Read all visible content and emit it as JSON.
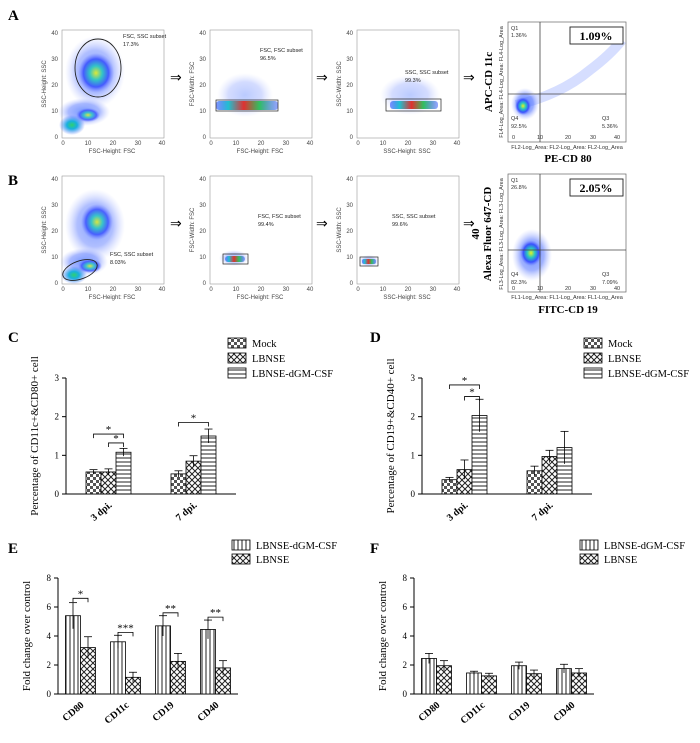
{
  "panels": {
    "A": "A",
    "B": "B",
    "C": "C",
    "D": "D",
    "E": "E",
    "F": "F"
  },
  "flow": {
    "row_A": {
      "plots": [
        {
          "xlabel": "FSC-Height: FSC",
          "ylabel": "SSC-Height: SSC",
          "gate": "FSC, SSC subset",
          "pct": "17.3%",
          "xticks": [
            "0",
            "10",
            "20",
            "30",
            "40"
          ],
          "yticks": [
            "0",
            "10",
            "20",
            "30",
            "40"
          ]
        },
        {
          "xlabel": "FSC-Height: FSC",
          "ylabel": "FSC-Width: FSC",
          "gate": "FSC, FSC subset",
          "pct": "96.5%",
          "xticks": [
            "0",
            "10",
            "20",
            "30",
            "40"
          ],
          "yticks": [
            "0",
            "10",
            "20",
            "30",
            "40"
          ]
        },
        {
          "xlabel": "SSC-Height: SSC",
          "ylabel": "SSC-Width: SSC",
          "gate": "SSC, SSC subset",
          "pct": "99.3%",
          "xticks": [
            "0",
            "10",
            "20",
            "30",
            "40"
          ],
          "yticks": [
            "0",
            "10",
            "20",
            "30",
            "40"
          ]
        }
      ],
      "quad": {
        "xlabel_small": "FL2-Log_Area: FL2-Log_Area: FL2-Log_Area",
        "ylabel_small": "FL4-Log_Area: FL4-Log_Area: FL4-Log_Area",
        "q1": "Q1",
        "q1v": "1.36%",
        "q4": "Q4",
        "q4v": "92.5%",
        "q3": "Q3",
        "q3v": "5.36%",
        "box": "1.09%",
        "xlabel": "PE-CD 80",
        "ylabel": "APC-CD 11c",
        "ticks": [
          "0",
          "10",
          "20",
          "30",
          "40"
        ]
      }
    },
    "row_B": {
      "plots": [
        {
          "xlabel": "FSC-Height: FSC",
          "ylabel": "SSC-Height: SSC",
          "gate": "FSC, SSC subset",
          "pct": "8.03%",
          "xticks": [
            "0",
            "10",
            "20",
            "30",
            "40"
          ],
          "yticks": [
            "0",
            "10",
            "20",
            "30",
            "40"
          ]
        },
        {
          "xlabel": "FSC-Height: FSC",
          "ylabel": "FSC-Width: FSC",
          "gate": "FSC, FSC subset",
          "pct": "99.4%",
          "xticks": [
            "0",
            "10",
            "20",
            "30",
            "40"
          ],
          "yticks": [
            "0",
            "10",
            "20",
            "30",
            "40"
          ]
        },
        {
          "xlabel": "SSC-Height: SSC",
          "ylabel": "SSC-Width: SSC",
          "gate": "SSC, SSC subset",
          "pct": "99.6%",
          "xticks": [
            "0",
            "10",
            "20",
            "30",
            "40"
          ],
          "yticks": [
            "0",
            "10",
            "20",
            "30",
            "40"
          ]
        }
      ],
      "quad": {
        "xlabel_small": "FL1-Log_Area: FL1-Log_Area: FL1-Log_Area",
        "ylabel_small": "FL3-Log_Area: FL3-Log_Area: FL3-Log_Area",
        "q1": "Q1",
        "q1v": "26.8%",
        "q4": "Q4",
        "q4v": "82.3%",
        "q3": "Q3",
        "q3v": "7.09%",
        "box": "2.05%",
        "xlabel": "FITC-CD 19",
        "ylabel": "Alexa Fluor 647-CD",
        "ylabel2": "40",
        "ticks": [
          "0",
          "10",
          "20",
          "30",
          "40"
        ]
      }
    }
  },
  "chart_data": [
    {
      "id": "C",
      "type": "bar",
      "ylabel": "Percentage of CD11c+&CD80+ cell",
      "ylim": [
        0,
        3
      ],
      "yticks": [
        "0",
        "1",
        "2",
        "3"
      ],
      "categories": [
        "3 dpi.",
        "7 dpi."
      ],
      "series": [
        {
          "name": "Mock",
          "pattern": "checker",
          "values": [
            0.57,
            0.52
          ],
          "errors": [
            0.06,
            0.08
          ]
        },
        {
          "name": "LBNSE",
          "pattern": "cross",
          "values": [
            0.57,
            0.85
          ],
          "errors": [
            0.08,
            0.14
          ]
        },
        {
          "name": "LBNSE-dGM-CSF",
          "pattern": "hstripe",
          "values": [
            1.08,
            1.5
          ],
          "errors": [
            0.1,
            0.18
          ]
        }
      ],
      "significance": [
        {
          "from": [
            0,
            0
          ],
          "to": [
            0,
            2
          ],
          "label": "*",
          "level": 1.55
        },
        {
          "from": [
            0,
            1
          ],
          "to": [
            0,
            2
          ],
          "label": "*",
          "level": 1.32
        },
        {
          "from": [
            1,
            0
          ],
          "to": [
            1,
            2
          ],
          "label": "*",
          "level": 1.85
        }
      ]
    },
    {
      "id": "D",
      "type": "bar",
      "ylabel": "Percentage of CD19+&CD40+ cell",
      "ylim": [
        0,
        3
      ],
      "yticks": [
        "0",
        "1",
        "2",
        "3"
      ],
      "categories": [
        "3 dpi.",
        "7 dpi."
      ],
      "series": [
        {
          "name": "Mock",
          "pattern": "checker",
          "values": [
            0.37,
            0.6
          ],
          "errors": [
            0.06,
            0.12
          ]
        },
        {
          "name": "LBNSE",
          "pattern": "cross",
          "values": [
            0.63,
            0.97
          ],
          "errors": [
            0.25,
            0.16
          ]
        },
        {
          "name": "LBNSE-dGM-CSF",
          "pattern": "hstripe",
          "values": [
            2.03,
            1.2
          ],
          "errors": [
            0.42,
            0.42
          ]
        }
      ],
      "significance": [
        {
          "from": [
            0,
            0
          ],
          "to": [
            0,
            2
          ],
          "label": "*",
          "level": 2.82
        },
        {
          "from": [
            0,
            1
          ],
          "to": [
            0,
            2
          ],
          "label": "*",
          "level": 2.52
        }
      ]
    },
    {
      "id": "E",
      "type": "bar",
      "ylabel": "Fold change over control",
      "ylim": [
        0,
        8
      ],
      "yticks": [
        "0",
        "2",
        "4",
        "6",
        "8"
      ],
      "categories": [
        "CD80",
        "CD11c",
        "CD19",
        "CD40"
      ],
      "series": [
        {
          "name": "LBNSE-dGM-CSF",
          "pattern": "vstripe",
          "values": [
            5.4,
            3.6,
            4.7,
            4.45
          ],
          "errors": [
            0.9,
            0.45,
            0.7,
            0.65
          ]
        },
        {
          "name": "LBNSE",
          "pattern": "cross",
          "values": [
            3.2,
            1.15,
            2.25,
            1.8
          ],
          "errors": [
            0.75,
            0.35,
            0.55,
            0.5
          ]
        }
      ],
      "significance": [
        {
          "from": [
            0,
            0
          ],
          "to": [
            0,
            1
          ],
          "label": "*",
          "level": 6.6
        },
        {
          "from": [
            1,
            0
          ],
          "to": [
            1,
            1
          ],
          "label": "***",
          "level": 4.25
        },
        {
          "from": [
            2,
            0
          ],
          "to": [
            2,
            1
          ],
          "label": "**",
          "level": 5.6
        },
        {
          "from": [
            3,
            0
          ],
          "to": [
            3,
            1
          ],
          "label": "**",
          "level": 5.3
        }
      ]
    },
    {
      "id": "F",
      "type": "bar",
      "ylabel": "Fold change over control",
      "ylim": [
        0,
        8
      ],
      "yticks": [
        "0",
        "2",
        "4",
        "6",
        "8"
      ],
      "categories": [
        "CD80",
        "CD11c",
        "CD19",
        "CD40"
      ],
      "series": [
        {
          "name": "LBNSE-dGM-CSF",
          "pattern": "vstripe",
          "values": [
            2.45,
            1.45,
            1.95,
            1.75
          ],
          "errors": [
            0.35,
            0.12,
            0.25,
            0.3
          ]
        },
        {
          "name": "LBNSE",
          "pattern": "cross",
          "values": [
            1.95,
            1.25,
            1.4,
            1.45
          ],
          "errors": [
            0.35,
            0.18,
            0.25,
            0.3
          ]
        }
      ],
      "significance": []
    }
  ]
}
